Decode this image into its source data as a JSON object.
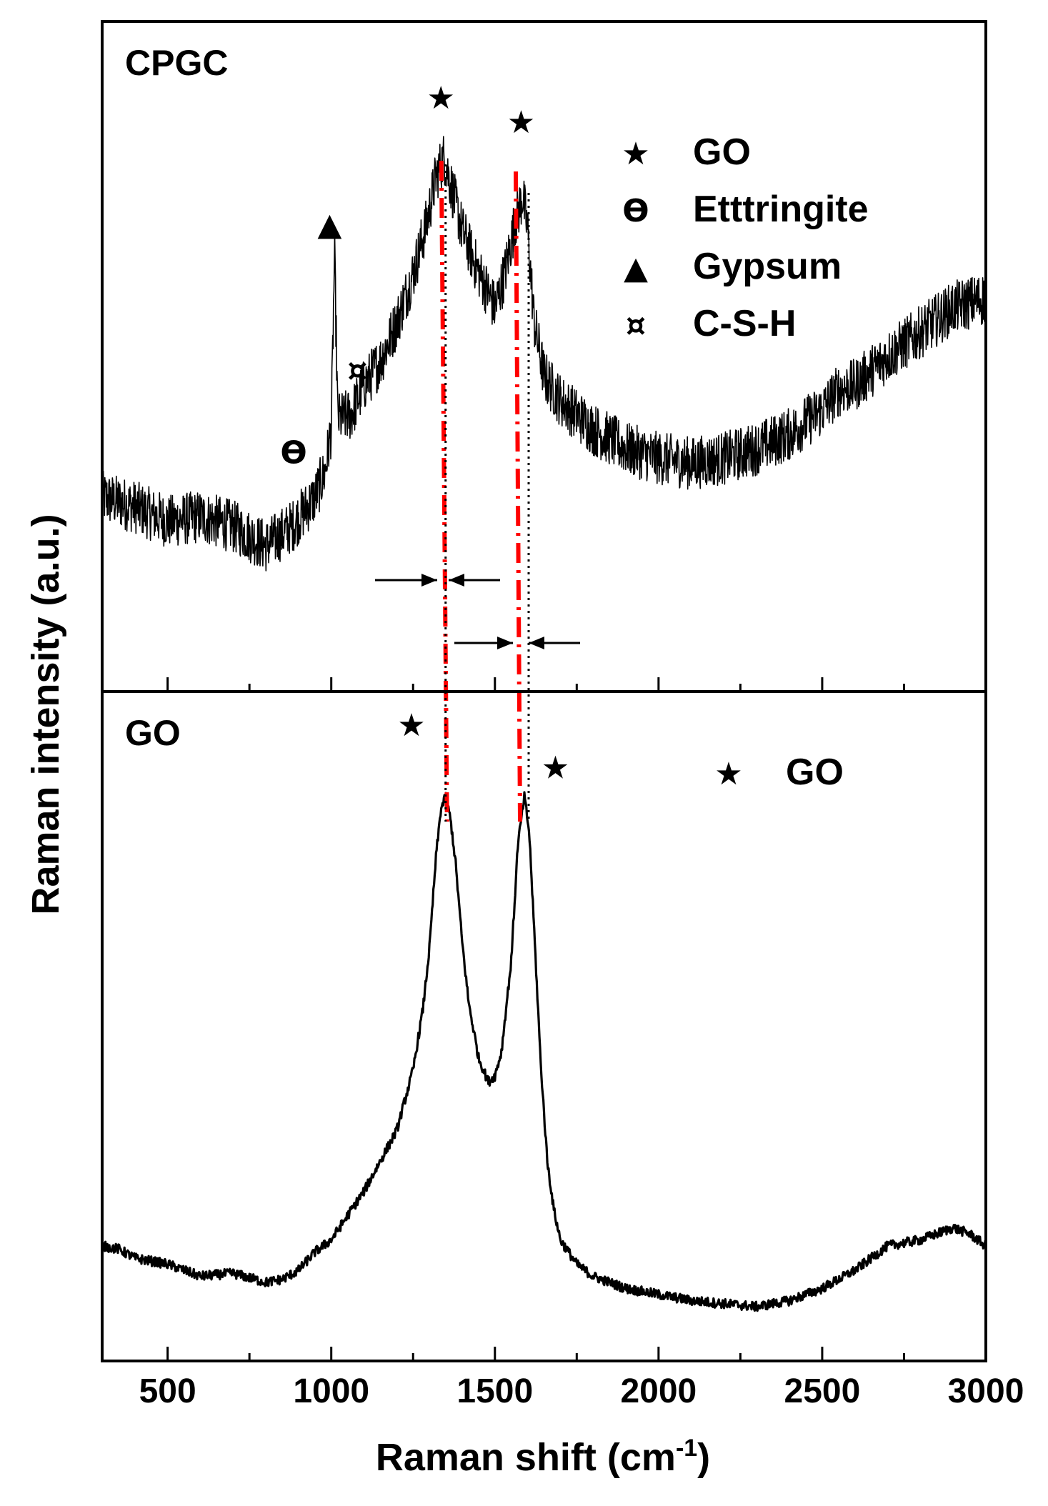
{
  "chart_data": {
    "type": "line",
    "xlabel_main": "Raman shift (cm",
    "xlabel_sup": "-1",
    "xlabel_close": ")",
    "ylabel": "Raman intensity (a.u.)",
    "xlim": [
      300,
      3000
    ],
    "xticks": [
      500,
      1000,
      1500,
      2000,
      2500,
      3000
    ],
    "xtick_labels": [
      "500",
      "1000",
      "1500",
      "2000",
      "2500",
      "3000"
    ],
    "minor_tick_step": 250,
    "d_band_cm": 1345,
    "g_band_cm": 1590,
    "panels": [
      {
        "label": "CPGC",
        "noise": 0.055,
        "points": [
          [
            300,
            0.3
          ],
          [
            400,
            0.28
          ],
          [
            500,
            0.25
          ],
          [
            600,
            0.26
          ],
          [
            700,
            0.24
          ],
          [
            800,
            0.2
          ],
          [
            880,
            0.24
          ],
          [
            950,
            0.3
          ],
          [
            980,
            0.35
          ],
          [
            1000,
            0.44
          ],
          [
            1010,
            0.8
          ],
          [
            1020,
            0.46
          ],
          [
            1060,
            0.47
          ],
          [
            1100,
            0.53
          ],
          [
            1150,
            0.58
          ],
          [
            1200,
            0.66
          ],
          [
            1250,
            0.76
          ],
          [
            1290,
            0.86
          ],
          [
            1320,
            0.96
          ],
          [
            1345,
            1.0
          ],
          [
            1370,
            0.93
          ],
          [
            1400,
            0.85
          ],
          [
            1440,
            0.78
          ],
          [
            1480,
            0.72
          ],
          [
            1500,
            0.69
          ],
          [
            1530,
            0.76
          ],
          [
            1560,
            0.86
          ],
          [
            1585,
            0.92
          ],
          [
            1600,
            0.85
          ],
          [
            1620,
            0.66
          ],
          [
            1650,
            0.55
          ],
          [
            1700,
            0.5
          ],
          [
            1800,
            0.44
          ],
          [
            1900,
            0.4
          ],
          [
            2000,
            0.38
          ],
          [
            2100,
            0.37
          ],
          [
            2200,
            0.38
          ],
          [
            2300,
            0.4
          ],
          [
            2400,
            0.43
          ],
          [
            2500,
            0.48
          ],
          [
            2550,
            0.52
          ],
          [
            2600,
            0.53
          ],
          [
            2700,
            0.59
          ],
          [
            2800,
            0.64
          ],
          [
            2900,
            0.69
          ],
          [
            3000,
            0.71
          ]
        ],
        "legend": [
          {
            "symbol": "★",
            "label": "GO"
          },
          {
            "symbol": "ϴ",
            "label": "Etttringite"
          },
          {
            "symbol": "▲",
            "label": "Gypsum"
          },
          {
            "symbol": "¤",
            "label": "C-S-H"
          }
        ],
        "markers": [
          {
            "symbol": "★",
            "x": 1335,
            "y": 1.1
          },
          {
            "symbol": "★",
            "x": 1580,
            "y": 1.05
          },
          {
            "symbol": "▲",
            "x": 995,
            "y": 0.84
          },
          {
            "symbol": "¤",
            "x": 1080,
            "y": 0.54
          },
          {
            "symbol": "ϴ",
            "x": 885,
            "y": 0.37
          }
        ]
      },
      {
        "label": "GO",
        "noise": 0.008,
        "points": [
          [
            300,
            0.16
          ],
          [
            350,
            0.155
          ],
          [
            400,
            0.14
          ],
          [
            500,
            0.13
          ],
          [
            600,
            0.11
          ],
          [
            700,
            0.115
          ],
          [
            800,
            0.1
          ],
          [
            850,
            0.105
          ],
          [
            900,
            0.12
          ],
          [
            950,
            0.15
          ],
          [
            1000,
            0.17
          ],
          [
            1050,
            0.21
          ],
          [
            1100,
            0.25
          ],
          [
            1150,
            0.3
          ],
          [
            1200,
            0.35
          ],
          [
            1250,
            0.45
          ],
          [
            1280,
            0.55
          ],
          [
            1300,
            0.65
          ],
          [
            1320,
            0.8
          ],
          [
            1335,
            0.88
          ],
          [
            1350,
            0.9
          ],
          [
            1365,
            0.86
          ],
          [
            1380,
            0.79
          ],
          [
            1400,
            0.66
          ],
          [
            1420,
            0.56
          ],
          [
            1450,
            0.47
          ],
          [
            1480,
            0.43
          ],
          [
            1500,
            0.44
          ],
          [
            1520,
            0.48
          ],
          [
            1550,
            0.63
          ],
          [
            1570,
            0.82
          ],
          [
            1590,
            0.9
          ],
          [
            1605,
            0.84
          ],
          [
            1620,
            0.68
          ],
          [
            1640,
            0.46
          ],
          [
            1660,
            0.3
          ],
          [
            1680,
            0.22
          ],
          [
            1700,
            0.17
          ],
          [
            1750,
            0.13
          ],
          [
            1800,
            0.11
          ],
          [
            1900,
            0.09
          ],
          [
            2000,
            0.08
          ],
          [
            2100,
            0.07
          ],
          [
            2200,
            0.065
          ],
          [
            2300,
            0.06
          ],
          [
            2400,
            0.07
          ],
          [
            2500,
            0.09
          ],
          [
            2600,
            0.12
          ],
          [
            2650,
            0.14
          ],
          [
            2700,
            0.16
          ],
          [
            2800,
            0.17
          ],
          [
            2900,
            0.19
          ],
          [
            2950,
            0.18
          ],
          [
            3000,
            0.16
          ]
        ],
        "legend": [
          {
            "symbol": "★",
            "label": "GO"
          }
        ],
        "markers": [
          {
            "symbol": "★",
            "x": 1245,
            "y": 1.0
          },
          {
            "symbol": "★",
            "x": 1685,
            "y": 0.93
          }
        ]
      }
    ]
  }
}
